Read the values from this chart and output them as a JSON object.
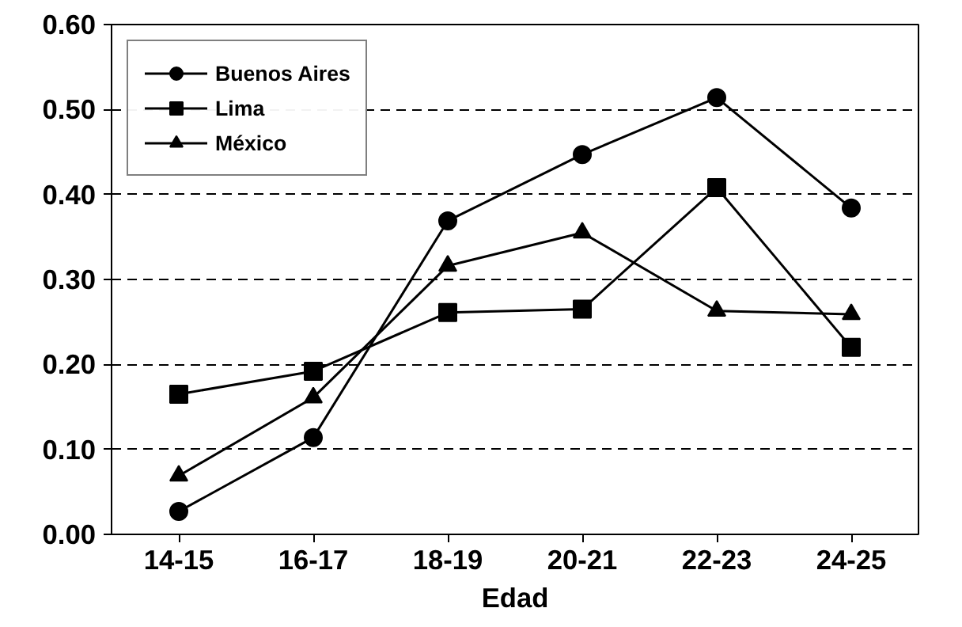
{
  "chart_data": {
    "type": "line",
    "xlabel": "Edad",
    "categories": [
      "14-15",
      "16-17",
      "18-19",
      "20-21",
      "22-23",
      "24-25"
    ],
    "series": [
      {
        "name": "Buenos Aires",
        "color": "#000000",
        "marker": "circle",
        "values": [
          0.027,
          0.114,
          0.369,
          0.447,
          0.514,
          0.384
        ]
      },
      {
        "name": "Lima",
        "color": "#000000",
        "marker": "square",
        "values": [
          0.165,
          0.192,
          0.261,
          0.265,
          0.408,
          0.22
        ]
      },
      {
        "name": "México",
        "color": "#000000",
        "marker": "triangle",
        "values": [
          0.069,
          0.161,
          0.316,
          0.355,
          0.263,
          0.259
        ]
      }
    ],
    "ylim": [
      0,
      0.6
    ],
    "yticks": [
      {
        "value": 0,
        "label": "0.00"
      },
      {
        "value": 0.1,
        "label": "0.10"
      },
      {
        "value": 0.2,
        "label": "0.20"
      },
      {
        "value": 0.3,
        "label": "0.30"
      },
      {
        "value": 0.4,
        "label": "0.40"
      },
      {
        "value": 0.5,
        "label": "0.50"
      },
      {
        "value": 0.6,
        "label": "0.60"
      }
    ],
    "grid": "y",
    "legend": "top left",
    "line_style": "solid"
  }
}
